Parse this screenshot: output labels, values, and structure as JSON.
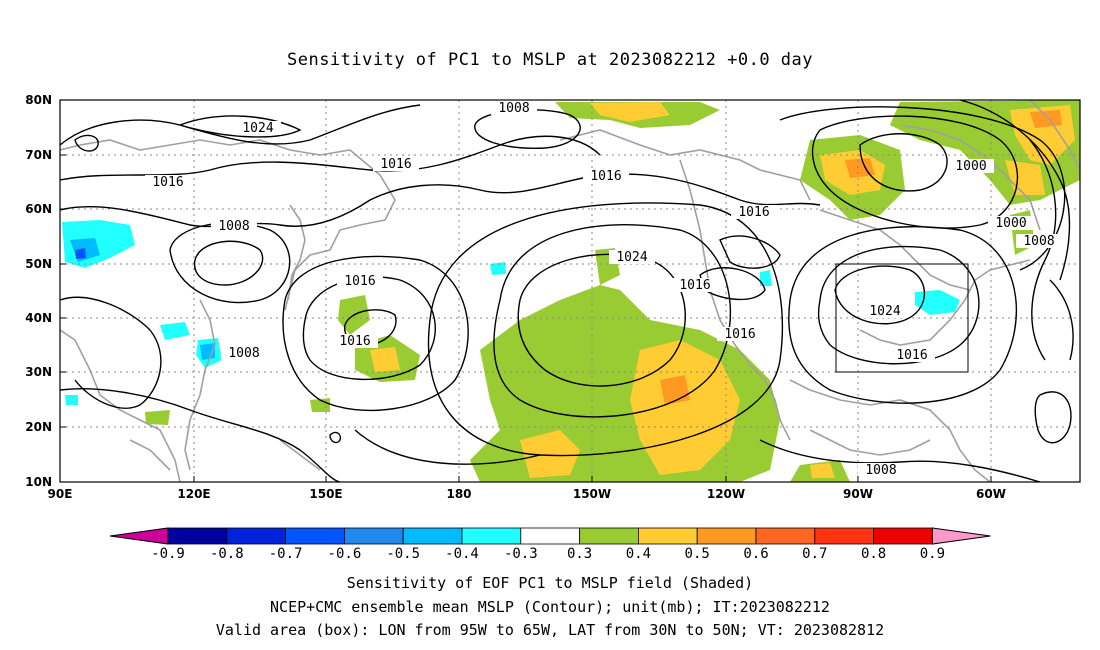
{
  "title": "Sensitivity of PC1 to MSLP at 2023082212 +0.0 day",
  "map": {
    "lon_labels": [
      "90E",
      "120E",
      "150E",
      "180",
      "150W",
      "120W",
      "90W",
      "60W"
    ],
    "lat_labels": [
      "80N",
      "70N",
      "60N",
      "50N",
      "40N",
      "30N",
      "20N",
      "10N"
    ],
    "contour_labels": [
      "1008",
      "1024",
      "1016",
      "1016",
      "1008",
      "1016",
      "1016",
      "1016",
      "1024",
      "1016",
      "1016",
      "1016",
      "1000",
      "1000",
      "1008",
      "1024",
      "1016",
      "1008",
      "1008"
    ],
    "valid_box": {
      "lon_from": "95W",
      "lon_to": "65W",
      "lat_from": "30N",
      "lat_to": "50N"
    }
  },
  "colorbar": {
    "labels": [
      "-0.9",
      "-0.8",
      "-0.7",
      "-0.6",
      "-0.5",
      "-0.4",
      "-0.3",
      "0.3",
      "0.4",
      "0.5",
      "0.6",
      "0.7",
      "0.8",
      "0.9"
    ],
    "colors": [
      "#0000a0",
      "#0022dd",
      "#0055ff",
      "#2288ee",
      "#00bbff",
      "#22ffff",
      "#ffffff",
      "#99cc33",
      "#ffcc33",
      "#ff9922",
      "#ff6622",
      "#ff3311",
      "#ee0000"
    ],
    "low_arrow_color": "#cc0099",
    "high_arrow_color": "#ff99cc"
  },
  "captions": {
    "line1": "Sensitivity of EOF PC1 to MSLP field (Shaded)",
    "line2": "NCEP+CMC ensemble mean MSLP (Contour); unit(mb); IT:2023082212",
    "line3": "Valid area (box): LON from 95W to 65W, LAT from 30N to 50N; VT: 2023082812"
  }
}
